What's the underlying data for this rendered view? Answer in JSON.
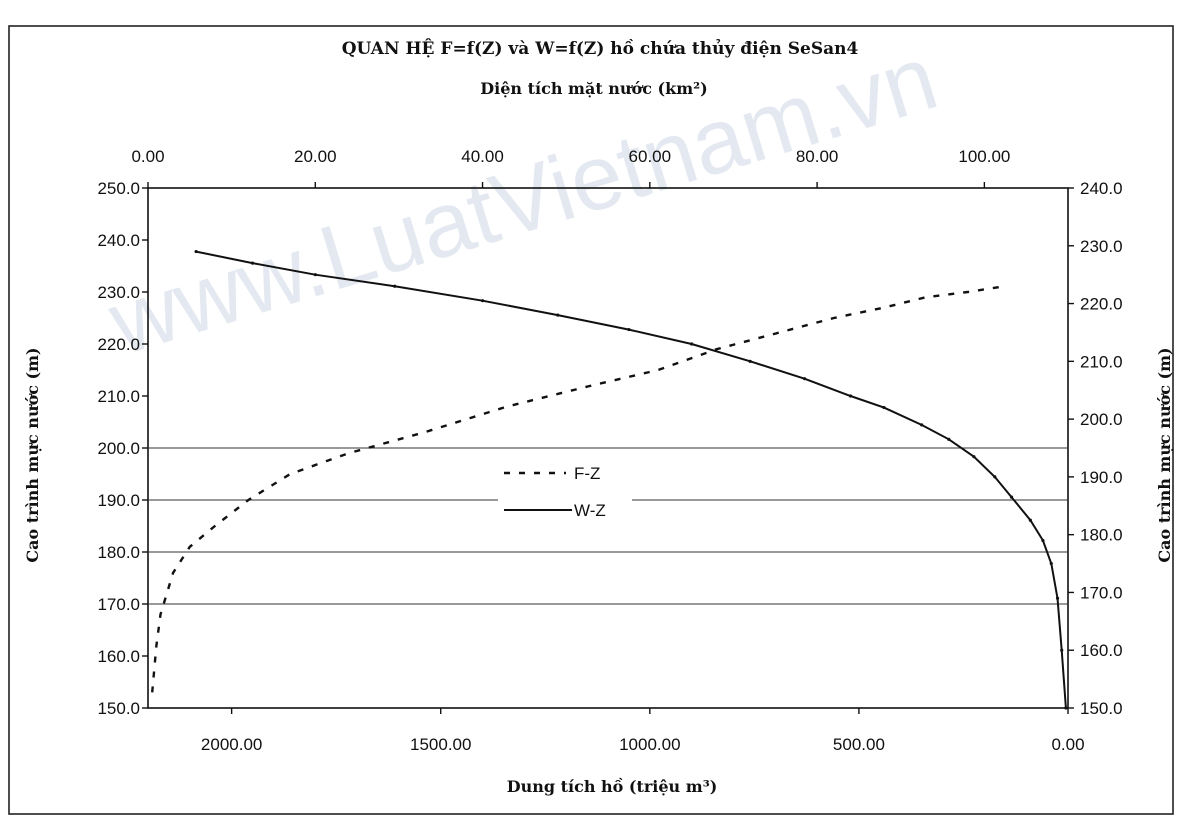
{
  "chart_data": {
    "type": "line",
    "title": "QUAN HỆ F=f(Z) và W=f(Z) hồ chứa thủy điện SeSan4",
    "axes": {
      "top": {
        "label": "Diện tích mặt nước (km²)",
        "min": 0,
        "max": 110,
        "ticks": [
          "0.00",
          "20.00",
          "40.00",
          "60.00",
          "80.00",
          "100.00"
        ],
        "tick_values": [
          0,
          20,
          40,
          60,
          80,
          100
        ]
      },
      "bottom": {
        "label": "Dung tích hồ (triệu m³)",
        "reversed": true,
        "min": 0,
        "max": 2200,
        "ticks": [
          "2000.00",
          "1500.00",
          "1000.00",
          "500.00",
          "0.00"
        ],
        "tick_values": [
          2000,
          1500,
          1000,
          500,
          0
        ]
      },
      "left": {
        "label": "Cao trình mực nước (m)",
        "min": 150,
        "max": 250,
        "ticks": [
          "250.0",
          "240.0",
          "230.0",
          "220.0",
          "210.0",
          "200.0",
          "190.0",
          "180.0",
          "170.0",
          "160.0",
          "150.0"
        ],
        "tick_values": [
          250,
          240,
          230,
          220,
          210,
          200,
          190,
          180,
          170,
          160,
          150
        ]
      },
      "right": {
        "label": "Cao trình mực nước (m)",
        "min": 150,
        "max": 240,
        "ticks": [
          "240.0",
          "230.0",
          "220.0",
          "210.0",
          "200.0",
          "190.0",
          "180.0",
          "170.0",
          "160.0",
          "150.0"
        ],
        "tick_values": [
          240,
          230,
          220,
          210,
          200,
          190,
          180,
          170,
          160,
          150
        ]
      }
    },
    "grid": {
      "horizontal_at": [
        200,
        190,
        180,
        170
      ],
      "axis": "left"
    },
    "legend": {
      "placement": "center"
    },
    "series": [
      {
        "name": "F-Z",
        "style": "dashed",
        "x_axis": "top",
        "y_axis": "left",
        "points": [
          [
            0.5,
            153
          ],
          [
            1,
            162
          ],
          [
            1.5,
            168
          ],
          [
            3,
            176
          ],
          [
            5,
            181
          ],
          [
            8,
            185
          ],
          [
            12,
            190
          ],
          [
            17,
            195
          ],
          [
            24,
            199
          ],
          [
            33,
            203
          ],
          [
            43,
            208
          ],
          [
            53,
            212
          ],
          [
            61,
            215
          ],
          [
            68,
            219
          ],
          [
            75,
            222
          ],
          [
            82,
            225
          ],
          [
            88,
            227
          ],
          [
            93,
            229
          ],
          [
            98,
            230
          ],
          [
            102,
            231
          ]
        ]
      },
      {
        "name": "W-Z",
        "style": "solid",
        "x_axis": "bottom",
        "y_axis": "right",
        "points": [
          [
            2085,
            229
          ],
          [
            1950,
            227
          ],
          [
            1800,
            225
          ],
          [
            1610,
            223
          ],
          [
            1400,
            220.5
          ],
          [
            1220,
            218
          ],
          [
            1050,
            215.5
          ],
          [
            900,
            213
          ],
          [
            760,
            210
          ],
          [
            630,
            207
          ],
          [
            520,
            204
          ],
          [
            440,
            202
          ],
          [
            350,
            199
          ],
          [
            285,
            196.5
          ],
          [
            225,
            193.5
          ],
          [
            175,
            190
          ],
          [
            135,
            186.5
          ],
          [
            90,
            182.5
          ],
          [
            60,
            179
          ],
          [
            40,
            175
          ],
          [
            25,
            169
          ],
          [
            15,
            160
          ],
          [
            5,
            150
          ]
        ]
      }
    ]
  },
  "watermark": "www.LuatVietnam.vn"
}
